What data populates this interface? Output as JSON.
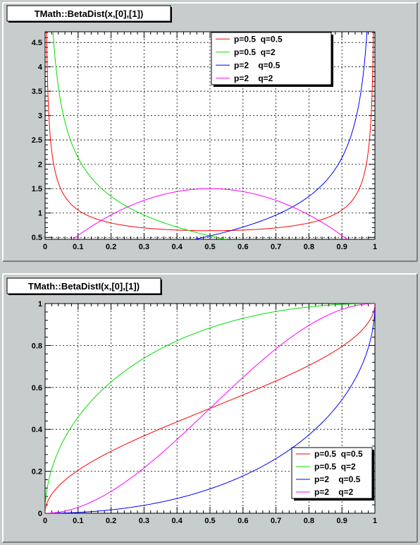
{
  "chart_data": [
    {
      "type": "line",
      "title": "TMath::BetaDist(x,[0],[1])",
      "xlim": [
        0,
        1
      ],
      "ylim": [
        0.46,
        4.72
      ],
      "xticks": [
        0,
        0.1,
        0.2,
        0.3,
        0.4,
        0.5,
        0.6,
        0.7,
        0.8,
        0.9,
        1
      ],
      "xtick_labels": [
        "0",
        "0.1",
        "0.2",
        "0.3",
        "0.4",
        "0.5",
        "0.6",
        "0.7",
        "0.8",
        "0.9",
        "1"
      ],
      "yticks": [
        0.5,
        1,
        1.5,
        2,
        2.5,
        3,
        3.5,
        4,
        4.5
      ],
      "ytick_labels": [
        "0.5",
        "1",
        "1.5",
        "2",
        "2.5",
        "3",
        "3.5",
        "4",
        "4.5"
      ],
      "grid": true,
      "legend_position": "top-right",
      "series": [
        {
          "name": "p=0.5  q=0.5",
          "color": "#ff0000",
          "p": 0.5,
          "q": 0.5
        },
        {
          "name": "p=0.5  q=2",
          "color": "#00e000",
          "p": 0.5,
          "q": 2
        },
        {
          "name": "p=2    q=0.5",
          "color": "#0000ff",
          "p": 2,
          "q": 0.5
        },
        {
          "name": "p=2    q=2",
          "color": "#ff00ff",
          "p": 2,
          "q": 2
        }
      ]
    },
    {
      "type": "line",
      "title": "TMath::BetaDistI(x,[0],[1])",
      "xlim": [
        0,
        1
      ],
      "ylim": [
        0,
        1
      ],
      "xticks": [
        0,
        0.1,
        0.2,
        0.3,
        0.4,
        0.5,
        0.6,
        0.7,
        0.8,
        0.9,
        1
      ],
      "xtick_labels": [
        "0",
        "0.1",
        "0.2",
        "0.3",
        "0.4",
        "0.5",
        "0.6",
        "0.7",
        "0.8",
        "0.9",
        "1"
      ],
      "yticks": [
        0,
        0.2,
        0.4,
        0.6,
        0.8,
        1
      ],
      "ytick_labels": [
        "0",
        "0.2",
        "0.4",
        "0.6",
        "0.8",
        "1"
      ],
      "grid": true,
      "legend_position": "bottom-right",
      "series": [
        {
          "name": "p=0.5  q=0.5",
          "color": "#ff0000",
          "p": 0.5,
          "q": 0.5
        },
        {
          "name": "p=0.5  q=2",
          "color": "#00e000",
          "p": 0.5,
          "q": 2
        },
        {
          "name": "p=2    q=0.5",
          "color": "#0000ff",
          "p": 2,
          "q": 0.5
        },
        {
          "name": "p=2    q=2",
          "color": "#ff00ff",
          "p": 2,
          "q": 2
        }
      ]
    }
  ]
}
